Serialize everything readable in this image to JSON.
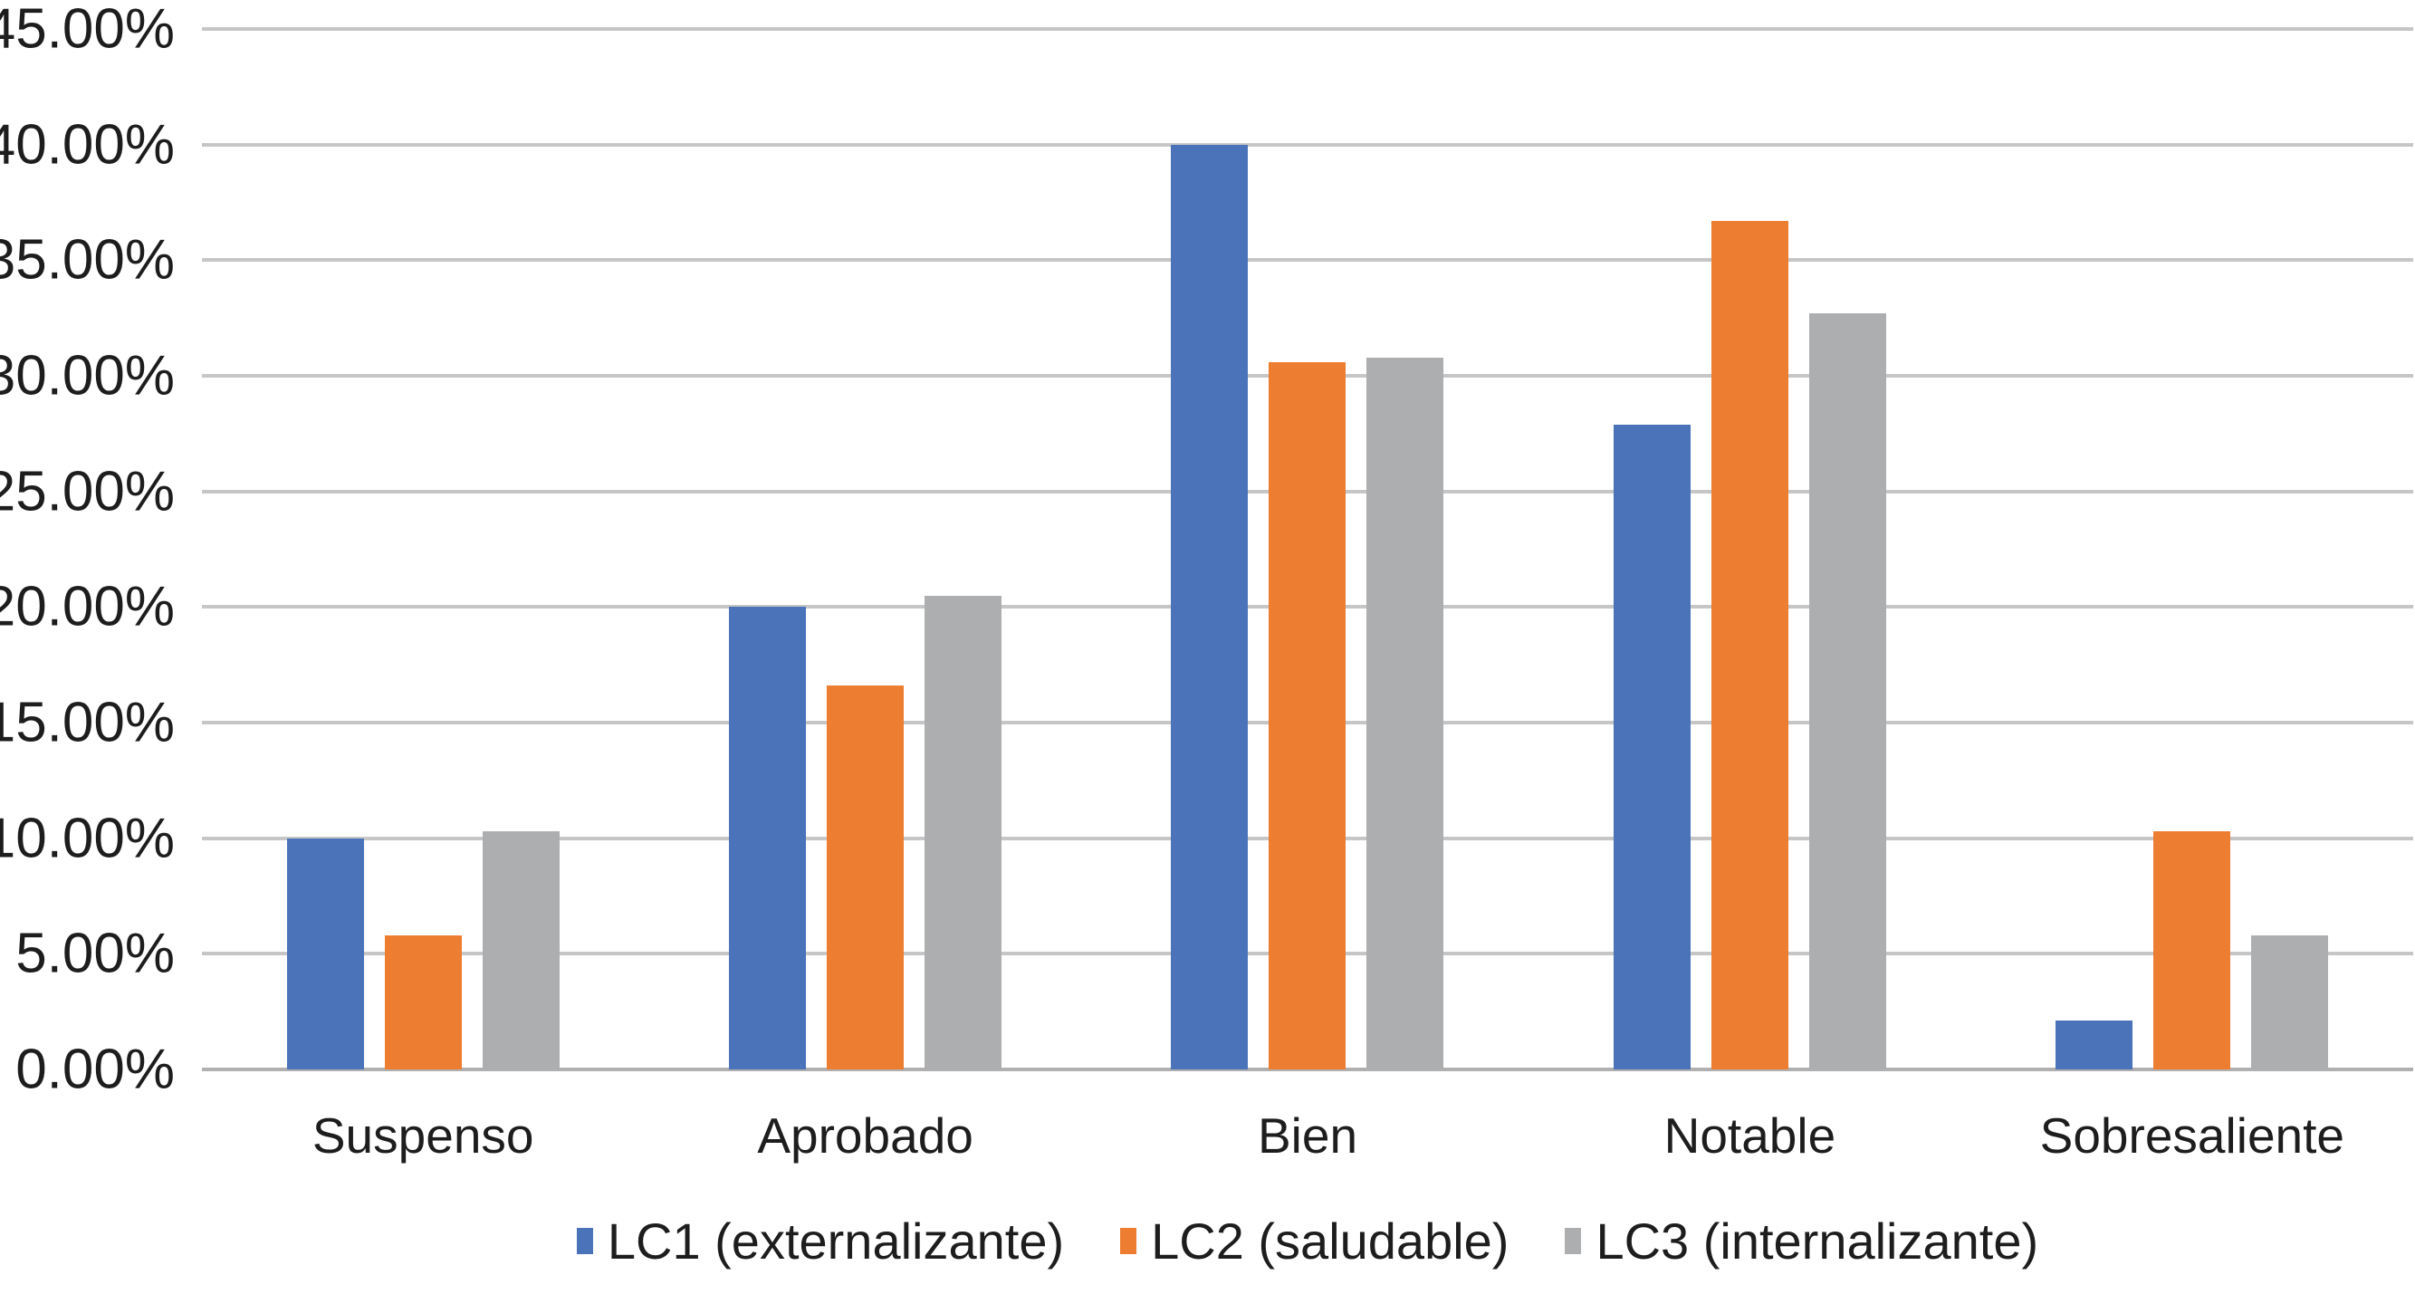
{
  "chart_data": {
    "type": "bar",
    "title": "",
    "xlabel": "",
    "ylabel": "",
    "categories": [
      "Suspenso",
      "Aprobado",
      "Bien",
      "Notable",
      "Sobresaliente"
    ],
    "series": [
      {
        "name": "LC1 (externalizante)",
        "color": "#4A73B9",
        "values": [
          10.0,
          20.0,
          40.0,
          27.9,
          2.1
        ]
      },
      {
        "name": "LC2 (saludable)",
        "color": "#ED7D31",
        "values": [
          5.8,
          16.6,
          30.6,
          36.7,
          10.3
        ]
      },
      {
        "name": "LC3 (internalizante)",
        "color": "#ACAEB0",
        "values": [
          10.3,
          20.5,
          30.8,
          32.7,
          5.8
        ]
      }
    ],
    "ylim": [
      0,
      45
    ],
    "ytick_step": 5,
    "ytick_labels": [
      "45.00%",
      "40.00%",
      "35.00%",
      "30.00%",
      "25.00%",
      "20.00%",
      "15.00%",
      "10.00%",
      "5.00%",
      "0.00%"
    ],
    "grid": "horizontal-major-only",
    "legend_position": "bottom-center",
    "colors": {
      "gridline": "#C6C6C6",
      "axis_line": "#B0B0B0",
      "text": "#1D1D1D",
      "background": "#FFFFFF"
    }
  }
}
